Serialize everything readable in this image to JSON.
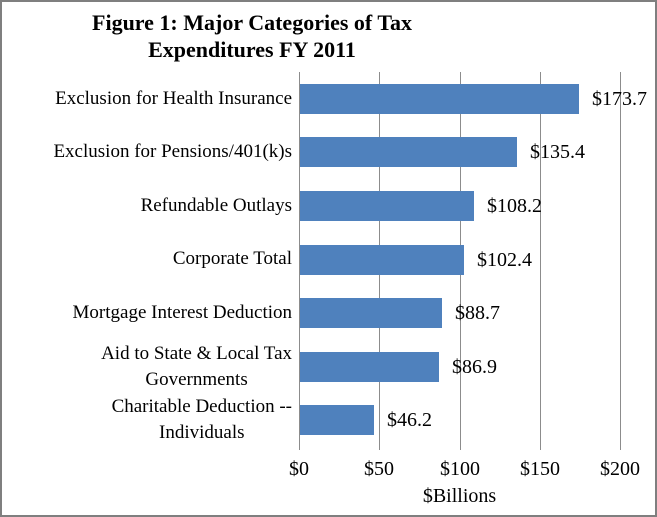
{
  "window": {
    "background": "#ffffff",
    "border_color": "#7f7f7f"
  },
  "chart_data": {
    "type": "bar",
    "orientation": "horizontal",
    "title_lines": [
      "Figure 1: Major Categories of Tax",
      "Expenditures FY 2011"
    ],
    "title": "Figure 1: Major Categories of Tax Expenditures FY 2011",
    "categories": [
      "Exclusion for Health Insurance",
      "Exclusion for Pensions/401(k)s",
      "Refundable Outlays",
      "Corporate Total",
      "Mortgage Interest Deduction",
      "Aid to State & Local Tax\nGovernments",
      "Charitable Deduction --\nIndividuals"
    ],
    "values": [
      173.7,
      135.4,
      108.2,
      102.4,
      88.7,
      86.9,
      46.2
    ],
    "value_labels": [
      "$173.7",
      "$135.4",
      "$108.2",
      "$102.4",
      "$88.7",
      "$86.9",
      "$46.2"
    ],
    "xlabel": "$Billions",
    "x_ticks": [
      0,
      50,
      100,
      150,
      200
    ],
    "x_tick_labels": [
      "$0",
      "$50",
      "$100",
      "$150",
      "$200"
    ],
    "xlim": [
      0,
      200
    ],
    "grid": true,
    "legend": "none",
    "bar_color": "#4f81bd",
    "gridline_color": "#8c8c8c",
    "text_color": "#000000"
  }
}
